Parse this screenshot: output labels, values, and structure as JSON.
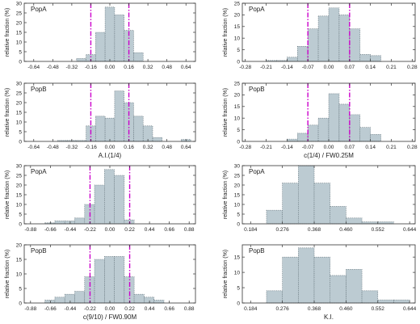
{
  "chart_data": [
    {
      "type": "bar",
      "panel_label": "PopA",
      "ylabel": "relative fraction (%)",
      "xlabel": "",
      "ylim": [
        0,
        30
      ],
      "yticks": [
        0,
        5,
        10,
        15,
        20,
        25,
        30
      ],
      "xlim": [
        -0.72,
        0.72
      ],
      "xticks": [
        "-0.64",
        "-0.48",
        "-0.32",
        "-0.16",
        "0.00",
        "0.16",
        "0.32",
        "0.48",
        "0.64"
      ],
      "bin_edges": [
        -0.28,
        -0.2,
        -0.12,
        -0.04,
        0.04,
        0.12,
        0.2,
        0.28
      ],
      "values": [
        1.5,
        3.5,
        15,
        28,
        24,
        16,
        4.5
      ],
      "markers": [
        -0.16,
        0.16
      ]
    },
    {
      "type": "bar",
      "panel_label": "PopA",
      "ylabel": "relative fraction (%)",
      "xlabel": "",
      "ylim": [
        0,
        25
      ],
      "yticks": [
        0,
        5,
        10,
        15,
        20,
        25
      ],
      "xlim": [
        -0.29,
        0.29
      ],
      "xticks": [
        "-0.28",
        "-0.21",
        "-0.14",
        "-0.07",
        "0.00",
        "0.07",
        "0.14",
        "0.21",
        "0.28"
      ],
      "bin_edges": [
        -0.21,
        -0.175,
        -0.14,
        -0.105,
        -0.07,
        -0.035,
        0.0,
        0.035,
        0.07,
        0.105,
        0.14,
        0.175
      ],
      "values": [
        0.4,
        0.4,
        1.8,
        6.5,
        14,
        19.5,
        23,
        20,
        14,
        3,
        2.5
      ],
      "markers": [
        -0.07,
        0.07
      ]
    },
    {
      "type": "bar",
      "panel_label": "PopB",
      "ylabel": "relative fraction (%)",
      "xlabel": "A.I.(1/4)",
      "ylim": [
        0,
        30
      ],
      "yticks": [
        0,
        5,
        10,
        15,
        20,
        25,
        30
      ],
      "xlim": [
        -0.72,
        0.72
      ],
      "xticks": [
        "-0.64",
        "-0.48",
        "-0.32",
        "-0.16",
        "0.00",
        "0.16",
        "0.32",
        "0.48",
        "0.64"
      ],
      "bin_edges": [
        -0.44,
        -0.36,
        -0.28,
        -0.2,
        -0.12,
        -0.04,
        0.04,
        0.12,
        0.2,
        0.28,
        0.36,
        0.44,
        0.52,
        0.6,
        0.68
      ],
      "values": [
        0.5,
        0.5,
        0.5,
        8,
        13,
        12,
        26,
        20,
        13,
        8,
        2,
        0,
        0,
        1
      ],
      "markers": [
        -0.16,
        0.16
      ]
    },
    {
      "type": "bar",
      "panel_label": "PopB",
      "ylabel": "relative fraction (%)",
      "xlabel": "c(1/4) / FW0.25M",
      "ylim": [
        0,
        25
      ],
      "yticks": [
        0,
        5,
        10,
        15,
        20,
        25
      ],
      "xlim": [
        -0.29,
        0.29
      ],
      "xticks": [
        "-0.28",
        "-0.21",
        "-0.14",
        "-0.07",
        "0.00",
        "0.07",
        "0.14",
        "0.21",
        "0.28"
      ],
      "bin_edges": [
        -0.14,
        -0.105,
        -0.07,
        -0.035,
        0.0,
        0.035,
        0.07,
        0.105,
        0.14,
        0.175
      ],
      "values": [
        1,
        3.5,
        7,
        10,
        20.5,
        16,
        11.5,
        6,
        3
      ],
      "markers": [
        -0.07,
        0.07
      ]
    },
    {
      "type": "bar",
      "panel_label": "PopA",
      "ylabel": "relative fraction (%)",
      "xlabel": "",
      "ylim": [
        0,
        30
      ],
      "yticks": [
        0,
        5,
        10,
        15,
        20,
        25,
        30
      ],
      "xlim": [
        -0.95,
        0.95
      ],
      "xticks": [
        "-0.88",
        "-0.66",
        "-0.44",
        "-0.22",
        "0.00",
        "0.22",
        "0.44",
        "0.66",
        "0.88"
      ],
      "bin_edges": [
        -0.72,
        -0.61,
        -0.5,
        -0.39,
        -0.28,
        -0.17,
        -0.06,
        0.05,
        0.16,
        0.27
      ],
      "values": [
        0.5,
        1.5,
        1.5,
        3,
        10,
        20,
        28,
        25,
        2
      ],
      "markers": [
        -0.22,
        0.22
      ]
    },
    {
      "type": "bar",
      "panel_label": "PopA",
      "ylabel": "relative fraction (%)",
      "xlabel": "",
      "ylim": [
        0,
        30
      ],
      "yticks": [
        0,
        5,
        10,
        15,
        20,
        25,
        30
      ],
      "xlim": [
        0.16,
        0.66
      ],
      "xticks": [
        "0.184",
        "0.276",
        "0.368",
        "0.460",
        "0.552",
        "0.644"
      ],
      "bin_edges": [
        0.23,
        0.276,
        0.322,
        0.368,
        0.414,
        0.46,
        0.506,
        0.552,
        0.598
      ],
      "values": [
        7,
        21,
        30,
        21,
        9,
        3,
        1,
        1
      ],
      "markers": []
    },
    {
      "type": "bar",
      "panel_label": "PopB",
      "ylabel": "relative fraction (%)",
      "xlabel": "c(9/10) / FW0.90M",
      "ylim": [
        0,
        20
      ],
      "yticks": [
        0,
        5,
        10,
        15,
        20
      ],
      "xlim": [
        -0.95,
        0.95
      ],
      "xticks": [
        "-0.88",
        "-0.66",
        "-0.44",
        "-0.22",
        "0.00",
        "0.22",
        "0.44",
        "0.66",
        "0.88"
      ],
      "bin_edges": [
        -0.72,
        -0.61,
        -0.5,
        -0.39,
        -0.28,
        -0.17,
        -0.06,
        0.05,
        0.16,
        0.27,
        0.38,
        0.49,
        0.6
      ],
      "values": [
        1,
        2,
        3,
        4,
        9,
        15,
        16,
        16,
        9,
        3,
        2,
        1
      ],
      "markers": [
        -0.22,
        0.22
      ]
    },
    {
      "type": "bar",
      "panel_label": "PopB",
      "ylabel": "relative fraction (%)",
      "xlabel": "K.I.",
      "ylim": [
        0,
        19
      ],
      "yticks": [
        0,
        5,
        10,
        15
      ],
      "xlim": [
        0.16,
        0.66
      ],
      "xticks": [
        "0.184",
        "0.276",
        "0.368",
        "0.460",
        "0.552",
        "0.644"
      ],
      "bin_edges": [
        0.23,
        0.276,
        0.322,
        0.368,
        0.414,
        0.46,
        0.506,
        0.552,
        0.598,
        0.644
      ],
      "values": [
        4,
        15,
        18,
        15,
        9,
        11,
        4,
        1,
        1
      ],
      "markers": []
    }
  ]
}
